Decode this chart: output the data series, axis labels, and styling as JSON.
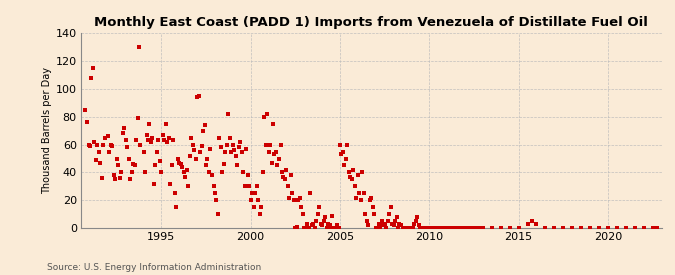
{
  "title": "Monthly East Coast (PADD 1) Imports from Venezuela of Distillate Fuel Oil",
  "ylabel": "Thousand Barrels per Day",
  "source": "Source: U.S. Energy Information Administration",
  "background_color": "#faebd7",
  "dot_color": "#cc0000",
  "grid_color": "#bbbbbb",
  "ylim": [
    0,
    140
  ],
  "yticks": [
    0,
    20,
    40,
    60,
    80,
    100,
    120,
    140
  ],
  "xlim_start": 1990.5,
  "xlim_end": 2023.0,
  "xticks": [
    1995,
    2000,
    2005,
    2010,
    2015,
    2020
  ],
  "data": [
    [
      1990.75,
      85
    ],
    [
      1990.83,
      76
    ],
    [
      1990.92,
      60
    ],
    [
      1991.0,
      59
    ],
    [
      1991.08,
      108
    ],
    [
      1991.17,
      115
    ],
    [
      1991.25,
      62
    ],
    [
      1991.33,
      49
    ],
    [
      1991.42,
      60
    ],
    [
      1991.5,
      55
    ],
    [
      1991.58,
      47
    ],
    [
      1991.67,
      36
    ],
    [
      1991.75,
      60
    ],
    [
      1991.83,
      65
    ],
    [
      1992.0,
      66
    ],
    [
      1992.08,
      55
    ],
    [
      1992.17,
      60
    ],
    [
      1992.25,
      59
    ],
    [
      1992.33,
      38
    ],
    [
      1992.42,
      35
    ],
    [
      1992.5,
      50
    ],
    [
      1992.58,
      45
    ],
    [
      1992.67,
      36
    ],
    [
      1992.75,
      40
    ],
    [
      1992.83,
      68
    ],
    [
      1992.92,
      72
    ],
    [
      1993.0,
      63
    ],
    [
      1993.08,
      58
    ],
    [
      1993.17,
      50
    ],
    [
      1993.25,
      35
    ],
    [
      1993.33,
      40
    ],
    [
      1993.42,
      46
    ],
    [
      1993.5,
      45
    ],
    [
      1993.58,
      63
    ],
    [
      1993.67,
      79
    ],
    [
      1993.75,
      130
    ],
    [
      1993.83,
      60
    ],
    [
      1994.0,
      55
    ],
    [
      1994.08,
      40
    ],
    [
      1994.17,
      67
    ],
    [
      1994.25,
      63
    ],
    [
      1994.33,
      75
    ],
    [
      1994.42,
      62
    ],
    [
      1994.5,
      65
    ],
    [
      1994.58,
      32
    ],
    [
      1994.67,
      45
    ],
    [
      1994.75,
      55
    ],
    [
      1994.83,
      63
    ],
    [
      1994.92,
      48
    ],
    [
      1995.0,
      40
    ],
    [
      1995.08,
      67
    ],
    [
      1995.17,
      63
    ],
    [
      1995.25,
      75
    ],
    [
      1995.33,
      62
    ],
    [
      1995.42,
      65
    ],
    [
      1995.5,
      32
    ],
    [
      1995.58,
      45
    ],
    [
      1995.67,
      63
    ],
    [
      1995.75,
      25
    ],
    [
      1995.83,
      15
    ],
    [
      1995.92,
      50
    ],
    [
      1996.0,
      47
    ],
    [
      1996.08,
      46
    ],
    [
      1996.17,
      44
    ],
    [
      1996.25,
      40
    ],
    [
      1996.33,
      37
    ],
    [
      1996.42,
      42
    ],
    [
      1996.5,
      30
    ],
    [
      1996.58,
      52
    ],
    [
      1996.67,
      65
    ],
    [
      1996.75,
      60
    ],
    [
      1996.83,
      56
    ],
    [
      1996.92,
      50
    ],
    [
      1997.0,
      94
    ],
    [
      1997.08,
      95
    ],
    [
      1997.17,
      55
    ],
    [
      1997.25,
      59
    ],
    [
      1997.33,
      70
    ],
    [
      1997.42,
      74
    ],
    [
      1997.5,
      45
    ],
    [
      1997.58,
      50
    ],
    [
      1997.67,
      40
    ],
    [
      1997.75,
      57
    ],
    [
      1997.83,
      38
    ],
    [
      1997.92,
      30
    ],
    [
      1998.0,
      25
    ],
    [
      1998.08,
      20
    ],
    [
      1998.17,
      10
    ],
    [
      1998.25,
      65
    ],
    [
      1998.33,
      58
    ],
    [
      1998.42,
      40
    ],
    [
      1998.5,
      46
    ],
    [
      1998.58,
      55
    ],
    [
      1998.67,
      60
    ],
    [
      1998.75,
      82
    ],
    [
      1998.83,
      65
    ],
    [
      1998.92,
      55
    ],
    [
      1999.0,
      60
    ],
    [
      1999.08,
      56
    ],
    [
      1999.17,
      52
    ],
    [
      1999.25,
      45
    ],
    [
      1999.33,
      58
    ],
    [
      1999.42,
      62
    ],
    [
      1999.5,
      55
    ],
    [
      1999.58,
      40
    ],
    [
      1999.67,
      30
    ],
    [
      1999.75,
      57
    ],
    [
      1999.83,
      38
    ],
    [
      1999.92,
      30
    ],
    [
      2000.0,
      20
    ],
    [
      2000.08,
      25
    ],
    [
      2000.17,
      15
    ],
    [
      2000.25,
      25
    ],
    [
      2000.33,
      30
    ],
    [
      2000.42,
      20
    ],
    [
      2000.5,
      10
    ],
    [
      2000.58,
      15
    ],
    [
      2000.67,
      40
    ],
    [
      2000.75,
      80
    ],
    [
      2000.83,
      60
    ],
    [
      2000.92,
      82
    ],
    [
      2001.0,
      55
    ],
    [
      2001.08,
      60
    ],
    [
      2001.17,
      47
    ],
    [
      2001.25,
      75
    ],
    [
      2001.33,
      53
    ],
    [
      2001.42,
      55
    ],
    [
      2001.5,
      45
    ],
    [
      2001.58,
      50
    ],
    [
      2001.67,
      60
    ],
    [
      2001.75,
      40
    ],
    [
      2001.83,
      37
    ],
    [
      2001.92,
      35
    ],
    [
      2002.0,
      42
    ],
    [
      2002.08,
      30
    ],
    [
      2002.17,
      22
    ],
    [
      2002.25,
      38
    ],
    [
      2002.33,
      25
    ],
    [
      2002.42,
      20
    ],
    [
      2002.5,
      0
    ],
    [
      2002.58,
      1
    ],
    [
      2002.67,
      20
    ],
    [
      2002.75,
      22
    ],
    [
      2002.83,
      15
    ],
    [
      2002.92,
      10
    ],
    [
      2003.0,
      0
    ],
    [
      2003.08,
      0
    ],
    [
      2003.17,
      3
    ],
    [
      2003.25,
      0
    ],
    [
      2003.33,
      25
    ],
    [
      2003.42,
      2
    ],
    [
      2003.5,
      3
    ],
    [
      2003.58,
      0
    ],
    [
      2003.67,
      5
    ],
    [
      2003.75,
      10
    ],
    [
      2003.83,
      15
    ],
    [
      2003.92,
      3
    ],
    [
      2004.0,
      2
    ],
    [
      2004.08,
      5
    ],
    [
      2004.17,
      8
    ],
    [
      2004.25,
      0
    ],
    [
      2004.33,
      3
    ],
    [
      2004.42,
      2
    ],
    [
      2004.5,
      0
    ],
    [
      2004.58,
      9
    ],
    [
      2004.67,
      0
    ],
    [
      2004.75,
      0
    ],
    [
      2004.83,
      2
    ],
    [
      2004.92,
      0
    ],
    [
      2005.0,
      60
    ],
    [
      2005.08,
      53
    ],
    [
      2005.17,
      55
    ],
    [
      2005.25,
      45
    ],
    [
      2005.33,
      50
    ],
    [
      2005.42,
      60
    ],
    [
      2005.5,
      40
    ],
    [
      2005.58,
      37
    ],
    [
      2005.67,
      35
    ],
    [
      2005.75,
      42
    ],
    [
      2005.83,
      30
    ],
    [
      2005.92,
      22
    ],
    [
      2006.0,
      38
    ],
    [
      2006.08,
      25
    ],
    [
      2006.17,
      20
    ],
    [
      2006.25,
      40
    ],
    [
      2006.33,
      25
    ],
    [
      2006.42,
      10
    ],
    [
      2006.5,
      5
    ],
    [
      2006.58,
      2
    ],
    [
      2006.67,
      20
    ],
    [
      2006.75,
      22
    ],
    [
      2006.83,
      15
    ],
    [
      2006.92,
      10
    ],
    [
      2007.0,
      0
    ],
    [
      2007.08,
      0
    ],
    [
      2007.17,
      3
    ],
    [
      2007.25,
      0
    ],
    [
      2007.33,
      5
    ],
    [
      2007.42,
      2
    ],
    [
      2007.5,
      3
    ],
    [
      2007.58,
      0
    ],
    [
      2007.67,
      5
    ],
    [
      2007.75,
      10
    ],
    [
      2007.83,
      15
    ],
    [
      2007.92,
      3
    ],
    [
      2008.0,
      2
    ],
    [
      2008.08,
      5
    ],
    [
      2008.17,
      8
    ],
    [
      2008.25,
      0
    ],
    [
      2008.33,
      3
    ],
    [
      2008.42,
      2
    ],
    [
      2008.5,
      0
    ],
    [
      2008.58,
      0
    ],
    [
      2008.67,
      0
    ],
    [
      2008.75,
      0
    ],
    [
      2008.83,
      0
    ],
    [
      2008.92,
      0
    ],
    [
      2009.0,
      0
    ],
    [
      2009.08,
      0
    ],
    [
      2009.17,
      3
    ],
    [
      2009.25,
      5
    ],
    [
      2009.33,
      8
    ],
    [
      2009.42,
      2
    ],
    [
      2009.5,
      0
    ],
    [
      2009.58,
      0
    ],
    [
      2009.67,
      0
    ],
    [
      2009.75,
      0
    ],
    [
      2009.83,
      0
    ],
    [
      2009.92,
      0
    ],
    [
      2010.0,
      0
    ],
    [
      2010.08,
      0
    ],
    [
      2010.17,
      0
    ],
    [
      2010.25,
      0
    ],
    [
      2010.33,
      0
    ],
    [
      2010.42,
      0
    ],
    [
      2010.5,
      0
    ],
    [
      2010.58,
      0
    ],
    [
      2010.67,
      0
    ],
    [
      2010.75,
      0
    ],
    [
      2010.83,
      0
    ],
    [
      2010.92,
      0
    ],
    [
      2011.0,
      0
    ],
    [
      2011.08,
      0
    ],
    [
      2011.17,
      0
    ],
    [
      2011.25,
      0
    ],
    [
      2011.33,
      0
    ],
    [
      2011.42,
      0
    ],
    [
      2011.5,
      0
    ],
    [
      2011.58,
      0
    ],
    [
      2011.67,
      0
    ],
    [
      2011.75,
      0
    ],
    [
      2011.83,
      0
    ],
    [
      2011.92,
      0
    ],
    [
      2012.0,
      0
    ],
    [
      2012.08,
      0
    ],
    [
      2012.17,
      0
    ],
    [
      2012.25,
      0
    ],
    [
      2012.33,
      0
    ],
    [
      2012.42,
      0
    ],
    [
      2012.5,
      0
    ],
    [
      2012.58,
      0
    ],
    [
      2012.67,
      0
    ],
    [
      2012.75,
      0
    ],
    [
      2012.83,
      0
    ],
    [
      2012.92,
      0
    ],
    [
      2013.0,
      0
    ],
    [
      2013.5,
      0
    ],
    [
      2014.0,
      0
    ],
    [
      2014.5,
      0
    ],
    [
      2015.0,
      0
    ],
    [
      2015.5,
      3
    ],
    [
      2015.75,
      5
    ],
    [
      2016.0,
      3
    ],
    [
      2016.5,
      0
    ],
    [
      2017.0,
      0
    ],
    [
      2017.5,
      0
    ],
    [
      2018.0,
      0
    ],
    [
      2018.5,
      0
    ],
    [
      2019.0,
      0
    ],
    [
      2019.5,
      0
    ],
    [
      2020.0,
      0
    ],
    [
      2020.5,
      0
    ],
    [
      2021.0,
      0
    ],
    [
      2021.5,
      0
    ],
    [
      2022.0,
      0
    ],
    [
      2022.5,
      0
    ],
    [
      2022.75,
      0
    ]
  ]
}
